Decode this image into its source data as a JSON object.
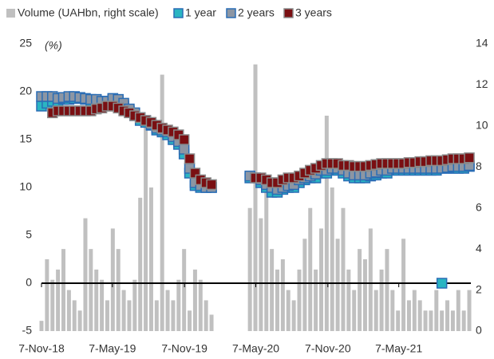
{
  "chart_data": {
    "type": "combo",
    "ylabel": "(%)",
    "x": [
      "2018-11-07",
      "2018-11-21",
      "2018-12-05",
      "2018-12-19",
      "2019-01-02",
      "2019-01-16",
      "2019-01-30",
      "2019-02-13",
      "2019-02-27",
      "2019-03-13",
      "2019-03-27",
      "2019-04-10",
      "2019-04-24",
      "2019-05-08",
      "2019-05-22",
      "2019-06-05",
      "2019-06-19",
      "2019-07-03",
      "2019-07-17",
      "2019-07-31",
      "2019-08-14",
      "2019-08-28",
      "2019-09-11",
      "2019-09-25",
      "2019-10-09",
      "2019-10-23",
      "2019-11-06",
      "2019-11-20",
      "2019-12-04",
      "2019-12-18",
      "2020-01-01",
      "2020-01-15",
      "2020-01-29",
      "2020-02-12",
      "2020-02-26",
      "2020-03-11",
      "2020-03-25",
      "2020-04-08",
      "2020-04-22",
      "2020-05-06",
      "2020-05-20",
      "2020-06-03",
      "2020-06-17",
      "2020-07-01",
      "2020-07-15",
      "2020-07-29",
      "2020-08-12",
      "2020-08-26",
      "2020-09-09",
      "2020-09-23",
      "2020-10-07",
      "2020-10-21",
      "2020-11-04",
      "2020-11-18",
      "2020-12-02",
      "2020-12-16",
      "2020-12-30",
      "2021-01-13",
      "2021-01-27",
      "2021-02-10",
      "2021-02-24",
      "2021-03-10",
      "2021-03-24",
      "2021-04-07",
      "2021-04-21",
      "2021-05-05",
      "2021-05-19",
      "2021-06-02",
      "2021-06-16",
      "2021-06-30",
      "2021-07-14",
      "2021-07-28",
      "2021-08-11",
      "2021-08-25",
      "2021-09-08",
      "2021-09-22",
      "2021-10-06",
      "2021-10-20",
      "2021-11-03"
    ],
    "series": [
      {
        "name": "Volume (UAHbn, right scale)",
        "type": "bar",
        "axis": "y2",
        "color": "#c0c0c0",
        "values": [
          0.5,
          3.5,
          2.5,
          3,
          4,
          2,
          1.5,
          1,
          5.5,
          4,
          3,
          2.5,
          1.5,
          5,
          4,
          2,
          1.5,
          2.5,
          6.5,
          10.5,
          7,
          1.5,
          12.5,
          2,
          1.5,
          2.5,
          4,
          1,
          3,
          2.5,
          1.5,
          0.8,
          null,
          null,
          null,
          null,
          null,
          null,
          6,
          13,
          5.5,
          7,
          4,
          3,
          3.5,
          2,
          1.5,
          3,
          4.5,
          6,
          3,
          5,
          10.5,
          7,
          4.5,
          6,
          3,
          2,
          4,
          3.5,
          5,
          2,
          3,
          4,
          2,
          1,
          4.5,
          1.5,
          2,
          1.5,
          1,
          1,
          2,
          1,
          1.5,
          1,
          2,
          1,
          2
        ]
      },
      {
        "name": "1 year",
        "type": "marker",
        "color": "#2ab5c2",
        "edgecolor": "#2a6db5",
        "values": [
          18.5,
          18.8,
          19,
          19,
          19.2,
          19.2,
          19.3,
          19.3,
          19.2,
          19,
          19,
          19,
          19,
          19.2,
          19,
          18.5,
          18,
          17.5,
          17,
          16.8,
          16.5,
          16,
          15.8,
          15.5,
          15,
          14.5,
          13.5,
          11.5,
          10.2,
          10,
          10,
          10,
          null,
          null,
          null,
          null,
          null,
          null,
          11,
          11,
          10.5,
          10,
          9.5,
          9.5,
          9.8,
          10,
          10,
          10.5,
          10.8,
          11,
          11,
          11.5,
          11.5,
          11.8,
          11.8,
          11.5,
          11.2,
          11,
          11,
          11,
          11.2,
          11.3,
          11.5,
          11.5,
          11.8,
          11.8,
          11.8,
          11.8,
          11.8,
          11.8,
          11.8,
          11.8,
          11.8,
          0,
          12,
          12,
          12,
          12,
          12.2
        ]
      },
      {
        "name": "2 years",
        "type": "marker",
        "color": "#8c96a4",
        "edgecolor": "#2a6db5",
        "values": [
          19.5,
          19.5,
          19.5,
          19.3,
          19.4,
          19.5,
          19.5,
          19.4,
          19.3,
          19.2,
          19.2,
          19,
          19,
          19.3,
          19.2,
          18.8,
          18.2,
          17.8,
          17.3,
          17,
          16.6,
          16.2,
          16,
          15.8,
          15.3,
          14.8,
          14,
          12,
          10.5,
          10.2,
          10,
          10,
          null,
          null,
          null,
          null,
          null,
          null,
          11.2,
          11,
          10.8,
          10.3,
          10,
          9.8,
          10,
          10.2,
          10.3,
          10.8,
          11,
          11.2,
          11.4,
          11.8,
          11.8,
          12,
          12,
          11.8,
          11.5,
          11.3,
          11.3,
          11.3,
          11.5,
          11.6,
          11.8,
          11.8,
          12,
          12,
          12,
          12,
          12,
          12,
          12,
          12,
          12,
          12,
          12.1,
          12.2,
          12.2,
          12.2,
          12.3
        ]
      },
      {
        "name": "3 years",
        "type": "marker",
        "color": "#7a0f12",
        "edgecolor": "#8a8a8a",
        "values": [
          null,
          null,
          17.8,
          18,
          18,
          18,
          18,
          18,
          18,
          18,
          18.2,
          18.3,
          18.5,
          18.5,
          18.3,
          18,
          17.8,
          17.5,
          17.3,
          17,
          16.8,
          16.5,
          16.2,
          16,
          15.8,
          15.5,
          15,
          13,
          11.5,
          10.8,
          10.5,
          10.3,
          null,
          null,
          null,
          null,
          null,
          null,
          null,
          11,
          11,
          10.8,
          10.5,
          10.5,
          10.8,
          11,
          11,
          11.2,
          11.5,
          11.8,
          12,
          12.3,
          12.5,
          12.5,
          12.5,
          12.3,
          12.3,
          12.2,
          12.2,
          12.2,
          12.3,
          12.4,
          12.5,
          12.5,
          12.5,
          12.5,
          12.5,
          12.6,
          12.6,
          12.7,
          12.7,
          12.8,
          12.8,
          12.8,
          12.9,
          13,
          13,
          13,
          13.1
        ]
      }
    ],
    "xlim": [
      "2018-11-07",
      "2021-11-07"
    ],
    "xticks": [
      {
        "value": "2018-11-07",
        "label": "7-Nov-18"
      },
      {
        "value": "2019-05-07",
        "label": "7-May-19"
      },
      {
        "value": "2019-11-07",
        "label": "7-Nov-19"
      },
      {
        "value": "2020-05-07",
        "label": "7-May-20"
      },
      {
        "value": "2020-11-07",
        "label": "7-Nov-20"
      },
      {
        "value": "2021-05-07",
        "label": "7-May-21"
      }
    ],
    "ylim": [
      -5,
      25
    ],
    "yticks": [
      -5,
      0,
      5,
      10,
      15,
      20,
      25
    ],
    "y2lim": [
      0,
      14
    ],
    "y2ticks": [
      0,
      2,
      4,
      6,
      8,
      10,
      12,
      14
    ],
    "legend": "top"
  }
}
